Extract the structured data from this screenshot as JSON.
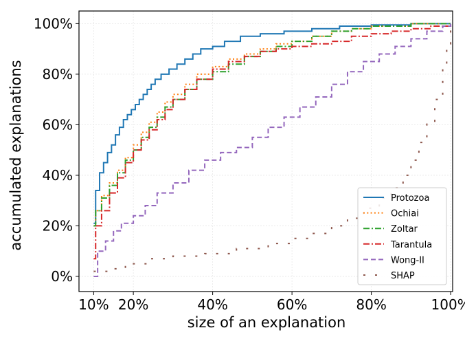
{
  "chart_data": {
    "type": "line",
    "step": true,
    "title": "",
    "xlabel": "size of an explanation",
    "ylabel": "accumulated explanations",
    "xlim": [
      0.063,
      1.005
    ],
    "ylim": [
      -0.06,
      1.05
    ],
    "xticks": [
      0.1,
      0.2,
      0.4,
      0.6,
      0.8,
      1.0
    ],
    "xtick_labels": [
      "10%",
      "20%",
      "40%",
      "60%",
      "80%",
      "100%"
    ],
    "yticks": [
      0.0,
      0.2,
      0.4,
      0.6,
      0.8,
      1.0
    ],
    "ytick_labels": [
      "0%",
      "20%",
      "40%",
      "60%",
      "80%",
      "100%"
    ],
    "grid": true,
    "legend_position": "lower-right",
    "series": [
      {
        "name": "Protozoa",
        "color": "#1f77b4",
        "style": "solid",
        "x": [
          0.1,
          0.105,
          0.115,
          0.125,
          0.135,
          0.145,
          0.155,
          0.165,
          0.175,
          0.185,
          0.195,
          0.205,
          0.215,
          0.225,
          0.235,
          0.245,
          0.255,
          0.27,
          0.29,
          0.31,
          0.33,
          0.35,
          0.37,
          0.4,
          0.43,
          0.47,
          0.52,
          0.58,
          0.65,
          0.72,
          0.8,
          0.9,
          1.0
        ],
        "y": [
          0.21,
          0.34,
          0.41,
          0.45,
          0.49,
          0.52,
          0.56,
          0.59,
          0.62,
          0.64,
          0.66,
          0.68,
          0.7,
          0.72,
          0.74,
          0.76,
          0.78,
          0.8,
          0.82,
          0.84,
          0.86,
          0.88,
          0.9,
          0.91,
          0.93,
          0.95,
          0.96,
          0.97,
          0.98,
          0.99,
          0.995,
          1.0,
          1.0
        ]
      },
      {
        "name": "Ochiai",
        "color": "#ff7f0e",
        "style": "dotted",
        "x": [
          0.1,
          0.105,
          0.12,
          0.14,
          0.16,
          0.18,
          0.2,
          0.22,
          0.24,
          0.26,
          0.28,
          0.3,
          0.33,
          0.36,
          0.4,
          0.44,
          0.48,
          0.52,
          0.56,
          0.6,
          0.65,
          0.7,
          0.75,
          0.8,
          0.9,
          1.0
        ],
        "y": [
          0.2,
          0.26,
          0.32,
          0.37,
          0.42,
          0.47,
          0.52,
          0.57,
          0.61,
          0.65,
          0.69,
          0.72,
          0.76,
          0.8,
          0.83,
          0.86,
          0.88,
          0.9,
          0.92,
          0.93,
          0.95,
          0.97,
          0.98,
          0.99,
          1.0,
          1.0
        ]
      },
      {
        "name": "Zoltar",
        "color": "#2ca02c",
        "style": "dashdot",
        "x": [
          0.1,
          0.105,
          0.12,
          0.14,
          0.16,
          0.18,
          0.2,
          0.22,
          0.24,
          0.26,
          0.28,
          0.3,
          0.33,
          0.36,
          0.4,
          0.44,
          0.48,
          0.52,
          0.56,
          0.6,
          0.65,
          0.7,
          0.75,
          0.8,
          0.9,
          1.0
        ],
        "y": [
          0.2,
          0.26,
          0.31,
          0.36,
          0.41,
          0.46,
          0.5,
          0.55,
          0.59,
          0.63,
          0.67,
          0.7,
          0.74,
          0.78,
          0.81,
          0.84,
          0.87,
          0.89,
          0.91,
          0.93,
          0.95,
          0.97,
          0.98,
          0.99,
          1.0,
          1.0
        ]
      },
      {
        "name": "Tarantula",
        "color": "#d62728",
        "style": "dashdot",
        "x": [
          0.1,
          0.105,
          0.12,
          0.14,
          0.16,
          0.18,
          0.2,
          0.22,
          0.24,
          0.26,
          0.28,
          0.3,
          0.33,
          0.36,
          0.4,
          0.44,
          0.48,
          0.52,
          0.56,
          0.6,
          0.65,
          0.7,
          0.75,
          0.8,
          0.85,
          0.9,
          0.95,
          1.0
        ],
        "y": [
          0.07,
          0.2,
          0.26,
          0.33,
          0.39,
          0.45,
          0.5,
          0.54,
          0.58,
          0.62,
          0.66,
          0.7,
          0.74,
          0.78,
          0.82,
          0.85,
          0.87,
          0.89,
          0.9,
          0.91,
          0.92,
          0.93,
          0.95,
          0.96,
          0.97,
          0.98,
          0.99,
          1.0
        ]
      },
      {
        "name": "Wong-II",
        "color": "#9467bd",
        "style": "dashed",
        "x": [
          0.1,
          0.11,
          0.13,
          0.15,
          0.17,
          0.2,
          0.23,
          0.26,
          0.3,
          0.34,
          0.38,
          0.42,
          0.46,
          0.5,
          0.54,
          0.58,
          0.62,
          0.66,
          0.7,
          0.74,
          0.78,
          0.82,
          0.86,
          0.9,
          0.94,
          0.98,
          1.0
        ],
        "y": [
          0.0,
          0.1,
          0.14,
          0.18,
          0.21,
          0.24,
          0.28,
          0.33,
          0.37,
          0.42,
          0.46,
          0.49,
          0.51,
          0.55,
          0.59,
          0.63,
          0.67,
          0.71,
          0.76,
          0.81,
          0.85,
          0.88,
          0.91,
          0.94,
          0.97,
          0.99,
          1.0
        ]
      },
      {
        "name": "SHAP",
        "color": "#8c564b",
        "style": "dashed-sparse",
        "x": [
          0.1,
          0.14,
          0.18,
          0.24,
          0.3,
          0.38,
          0.46,
          0.54,
          0.6,
          0.65,
          0.7,
          0.74,
          0.78,
          0.82,
          0.85,
          0.88,
          0.9,
          0.92,
          0.94,
          0.96,
          0.98,
          0.99,
          1.0
        ],
        "y": [
          0.02,
          0.03,
          0.05,
          0.07,
          0.08,
          0.09,
          0.11,
          0.13,
          0.15,
          0.17,
          0.2,
          0.23,
          0.27,
          0.31,
          0.35,
          0.4,
          0.46,
          0.53,
          0.61,
          0.7,
          0.82,
          0.92,
          1.0
        ]
      }
    ]
  }
}
